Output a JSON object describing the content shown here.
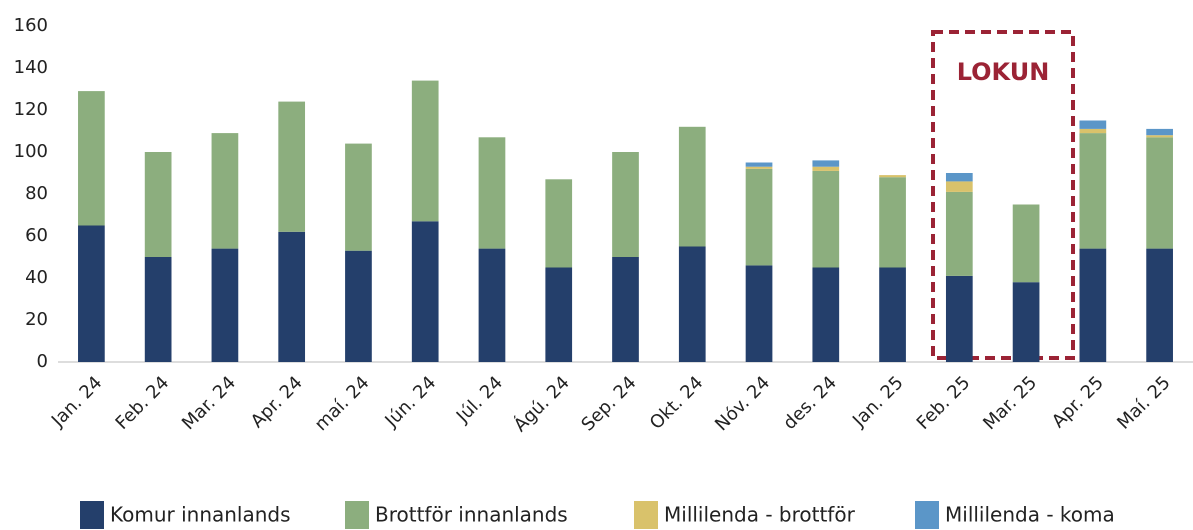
{
  "chart_data": {
    "type": "bar",
    "stacked": true,
    "categories": [
      "Jan. 24",
      "Feb. 24",
      "Mar. 24",
      "Apr. 24",
      "maí. 24",
      "Jún. 24",
      "Júl. 24",
      "Ágú. 24",
      "Sep. 24",
      "Okt. 24",
      "Nóv. 24",
      "des. 24",
      "Jan. 25",
      "Feb. 25",
      "Mar. 25",
      "Apr. 25",
      "Maí. 25"
    ],
    "series": [
      {
        "name": "Komur innanlands",
        "color": "#243f6b",
        "values": [
          65,
          50,
          54,
          62,
          53,
          67,
          54,
          45,
          50,
          55,
          46,
          45,
          45,
          41,
          38,
          54,
          54
        ]
      },
      {
        "name": "Brottför innanlands",
        "color": "#8cae7e",
        "values": [
          64,
          50,
          55,
          62,
          51,
          67,
          53,
          42,
          50,
          57,
          46,
          46,
          43,
          40,
          37,
          55,
          53
        ]
      },
      {
        "name": "Millilenda - brottför",
        "color": "#d9c26b",
        "values": [
          0,
          0,
          0,
          0,
          0,
          0,
          0,
          0,
          0,
          0,
          1,
          2,
          1,
          5,
          0,
          2,
          1
        ]
      },
      {
        "name": "Millilenda - koma",
        "color": "#5b96c8",
        "values": [
          0,
          0,
          0,
          0,
          0,
          0,
          0,
          0,
          0,
          0,
          2,
          3,
          0,
          4,
          0,
          4,
          3
        ]
      }
    ],
    "annotation": "LOKUN",
    "ylim": [
      0,
      160
    ],
    "yticks": [
      0,
      20,
      40,
      60,
      80,
      100,
      120,
      140,
      160
    ],
    "grid": false,
    "legend": "bottom"
  }
}
